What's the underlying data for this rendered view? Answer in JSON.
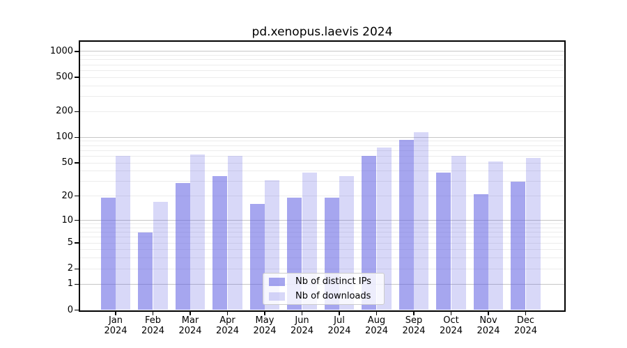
{
  "title": "pd.xenopus.laevis 2024",
  "colors": {
    "ips_bar": "#a5a5ee",
    "downloads_bar": "#d9d9f8",
    "ips_fill": "rgba(92,92,226,0.55)",
    "downloads_fill": "rgba(92,92,226,0.24)",
    "grid_minor": "#ececec",
    "grid_major": "#c6c6c6",
    "spine": "#000000"
  },
  "chart_data": {
    "type": "bar",
    "title": "pd.xenopus.laevis 2024",
    "categories": [
      "Jan 2024",
      "Feb 2024",
      "Mar 2024",
      "Apr 2024",
      "May 2024",
      "Jun 2024",
      "Jul 2024",
      "Aug 2024",
      "Sep 2024",
      "Oct 2024",
      "Nov 2024",
      "Dec 2024"
    ],
    "series": [
      {
        "name": "Nb of distinct IPs",
        "color": "#a5a5ee",
        "fill": "rgba(92,92,226,0.55)",
        "values": [
          19,
          7,
          29,
          35,
          16,
          19,
          19,
          61,
          93,
          38,
          21,
          30
        ]
      },
      {
        "name": "Nb of downloads",
        "color": "#d9d9f8",
        "fill": "rgba(92,92,226,0.24)",
        "values": [
          60,
          17,
          63,
          61,
          31,
          38,
          35,
          76,
          114,
          61,
          52,
          57
        ]
      }
    ],
    "xlabel": "",
    "ylabel": "",
    "y_ticks": [
      0,
      1,
      2,
      5,
      10,
      20,
      50,
      100,
      200,
      500,
      1000
    ],
    "y_scale": "log1p",
    "ylim": [
      0,
      1336
    ],
    "grid": "horizontal, minor and major",
    "legend_position": "inside lower center"
  }
}
